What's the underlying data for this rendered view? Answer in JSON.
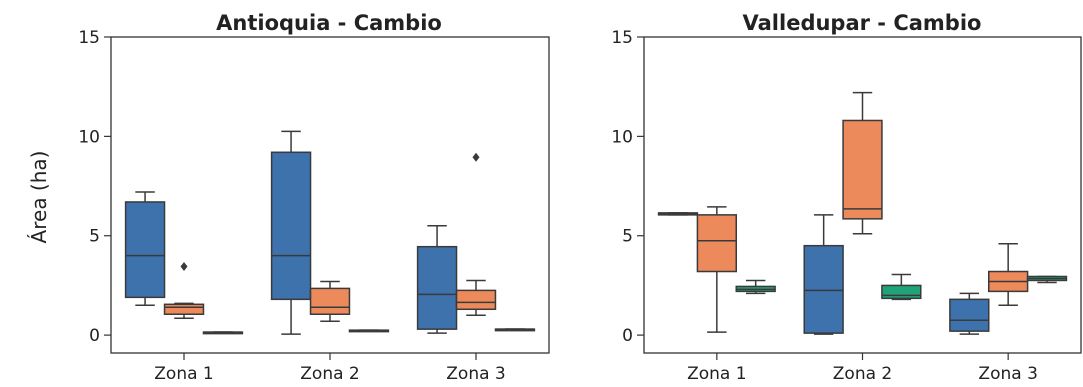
{
  "colors": {
    "series1": "#3d72ad",
    "series2": "#ec8a5b",
    "series3": "#21a37a",
    "line": "#3a3a3a"
  },
  "chart_data": [
    {
      "type": "box",
      "title": "Antioquia - Cambio",
      "xlabel": "",
      "ylabel": "Área (ha)",
      "ylim": [
        -0.9,
        15
      ],
      "yticks": [
        0,
        5,
        10,
        15
      ],
      "categories": [
        "Zona 1",
        "Zona 2",
        "Zona 3"
      ],
      "series": [
        {
          "boxes": [
            {
              "whislo": 1.5,
              "q1": 1.9,
              "med": 4.0,
              "q3": 6.7,
              "whishi": 7.2,
              "fliers": []
            },
            {
              "whislo": 0.05,
              "q1": 1.8,
              "med": 4.0,
              "q3": 9.2,
              "whishi": 10.25,
              "fliers": []
            },
            {
              "whislo": 0.1,
              "q1": 0.3,
              "med": 2.05,
              "q3": 4.45,
              "whishi": 5.5,
              "fliers": []
            }
          ]
        },
        {
          "boxes": [
            {
              "whislo": 0.85,
              "q1": 1.05,
              "med": 1.4,
              "q3": 1.55,
              "whishi": 1.6,
              "fliers": [
                3.45
              ]
            },
            {
              "whislo": 0.7,
              "q1": 1.05,
              "med": 1.4,
              "q3": 2.35,
              "whishi": 2.7,
              "fliers": []
            },
            {
              "whislo": 1.0,
              "q1": 1.3,
              "med": 1.65,
              "q3": 2.25,
              "whishi": 2.75,
              "fliers": [
                8.95
              ]
            }
          ]
        },
        {
          "boxes": [
            {
              "whislo": 0.15,
              "q1": 0.15,
              "med": 0.15,
              "q3": 0.15,
              "whishi": 0.15,
              "fliers": []
            },
            {
              "whislo": 0.2,
              "q1": 0.2,
              "med": 0.2,
              "q3": 0.25,
              "whishi": 0.25,
              "fliers": []
            },
            {
              "whislo": 0.3,
              "q1": 0.3,
              "med": 0.3,
              "q3": 0.3,
              "whishi": 0.3,
              "fliers": []
            }
          ]
        }
      ]
    },
    {
      "type": "box",
      "title": "Valledupar - Cambio",
      "xlabel": "",
      "ylabel": "",
      "ylim": [
        -0.9,
        15
      ],
      "yticks": [
        0,
        5,
        10,
        15
      ],
      "categories": [
        "Zona 1",
        "Zona 2",
        "Zona 3"
      ],
      "series": [
        {
          "boxes": [
            {
              "whislo": 6.05,
              "q1": 6.05,
              "med": 6.1,
              "q3": 6.15,
              "whishi": 6.15,
              "fliers": []
            },
            {
              "whislo": 0.05,
              "q1": 0.1,
              "med": 2.25,
              "q3": 4.5,
              "whishi": 6.05,
              "fliers": []
            },
            {
              "whislo": 0.05,
              "q1": 0.2,
              "med": 0.75,
              "q3": 1.8,
              "whishi": 2.1,
              "fliers": []
            }
          ]
        },
        {
          "boxes": [
            {
              "whislo": 0.15,
              "q1": 3.2,
              "med": 4.75,
              "q3": 6.05,
              "whishi": 6.45,
              "fliers": []
            },
            {
              "whislo": 5.1,
              "q1": 5.85,
              "med": 6.35,
              "q3": 10.8,
              "whishi": 12.2,
              "fliers": []
            },
            {
              "whislo": 1.5,
              "q1": 2.2,
              "med": 2.7,
              "q3": 3.2,
              "whishi": 4.6,
              "fliers": []
            }
          ]
        },
        {
          "boxes": [
            {
              "whislo": 2.1,
              "q1": 2.2,
              "med": 2.3,
              "q3": 2.45,
              "whishi": 2.75,
              "fliers": []
            },
            {
              "whislo": 1.8,
              "q1": 1.85,
              "med": 2.0,
              "q3": 2.5,
              "whishi": 3.05,
              "fliers": []
            },
            {
              "whislo": 2.65,
              "q1": 2.75,
              "med": 2.85,
              "q3": 2.95,
              "whishi": 2.95,
              "fliers": []
            }
          ]
        }
      ]
    }
  ]
}
